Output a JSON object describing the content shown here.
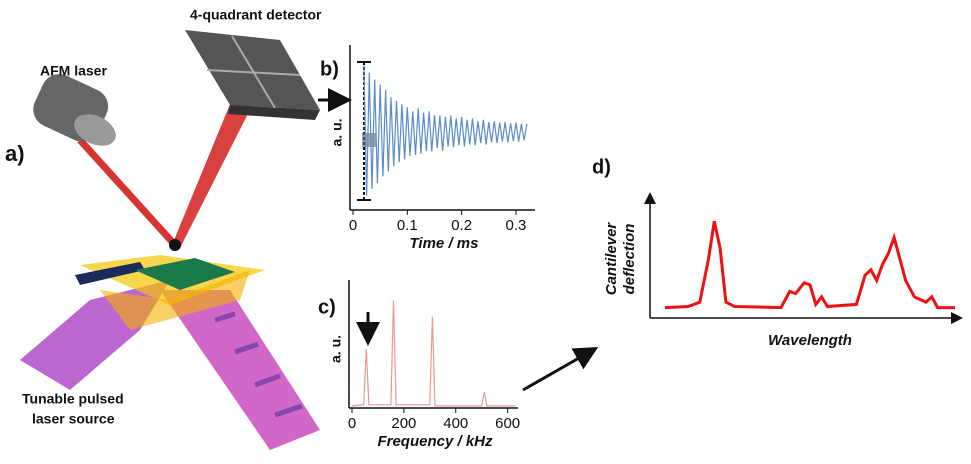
{
  "labels": {
    "a": "a)",
    "b": "b)",
    "c": "c)",
    "d": "d)",
    "detector": "4-quadrant detector",
    "laser": "AFM laser",
    "source": [
      "Tunable pulsed",
      "laser source"
    ]
  },
  "chart_data": [
    {
      "type": "line",
      "y_label": "a. u.",
      "x_label": "Time / ms",
      "color": "#5b8cc8",
      "xlim": [
        0,
        0.335
      ],
      "ylim": [
        -1.1,
        1.1
      ],
      "xticks": [
        0,
        0.1,
        0.2,
        0.3
      ],
      "x": [
        0.02,
        0.025,
        0.03,
        0.035,
        0.04,
        0.045,
        0.05,
        0.055,
        0.06,
        0.065,
        0.07,
        0.075,
        0.08,
        0.085,
        0.09,
        0.095,
        0.1,
        0.105,
        0.11,
        0.115,
        0.12,
        0.125,
        0.13,
        0.135,
        0.14,
        0.145,
        0.15,
        0.155,
        0.16,
        0.165,
        0.17,
        0.175,
        0.18,
        0.185,
        0.19,
        0.195,
        0.2,
        0.205,
        0.21,
        0.215,
        0.22,
        0.225,
        0.23,
        0.235,
        0.24,
        0.245,
        0.25,
        0.255,
        0.26,
        0.265,
        0.27,
        0.275,
        0.28,
        0.285,
        0.29,
        0.295,
        0.3,
        0.305,
        0.31,
        0.315,
        0.32
      ],
      "values": [
        0.95,
        -0.9,
        0.85,
        -0.8,
        0.75,
        -0.72,
        0.68,
        -0.62,
        0.6,
        -0.55,
        0.5,
        -0.48,
        0.45,
        -0.42,
        0.4,
        -0.38,
        0.36,
        -0.33,
        0.3,
        -0.32,
        0.34,
        -0.3,
        0.28,
        -0.26,
        0.3,
        -0.27,
        0.25,
        -0.22,
        0.24,
        -0.26,
        0.22,
        -0.2,
        0.24,
        -0.21,
        0.2,
        -0.18,
        0.22,
        -0.2,
        0.18,
        -0.17,
        0.2,
        -0.18,
        0.16,
        -0.15,
        0.18,
        -0.17,
        0.15,
        -0.14,
        0.16,
        -0.15,
        0.14,
        -0.13,
        0.15,
        -0.14,
        0.13,
        -0.12,
        0.14,
        -0.13,
        0.12,
        -0.11,
        0.12
      ]
    },
    {
      "type": "line",
      "y_label": "a. u.",
      "x_label": "Frequency / kHz",
      "color": "#e89a92",
      "xlim": [
        0,
        640
      ],
      "ylim": [
        0,
        1.1
      ],
      "xticks": [
        0,
        200,
        400,
        600
      ],
      "x": [
        0,
        45,
        55,
        65,
        150,
        160,
        170,
        300,
        310,
        320,
        500,
        510,
        520,
        630
      ],
      "values": [
        0.02,
        0.03,
        0.55,
        0.03,
        0.03,
        1.0,
        0.03,
        0.03,
        0.85,
        0.02,
        0.02,
        0.15,
        0.02,
        0.02
      ]
    },
    {
      "type": "line",
      "y_label": [
        "Cantilever",
        "deflection"
      ],
      "x_label": "Wavelength",
      "color": "#ee1111",
      "xlim": [
        0,
        100
      ],
      "ylim": [
        0,
        1
      ],
      "x": [
        0,
        8,
        12,
        15,
        17,
        19,
        21,
        24,
        40,
        43,
        45,
        48,
        50,
        52,
        54,
        56,
        66,
        69,
        71,
        73,
        75,
        77,
        79,
        81,
        83,
        86,
        90,
        92,
        94,
        100
      ],
      "values": [
        0.05,
        0.06,
        0.1,
        0.5,
        0.85,
        0.6,
        0.1,
        0.06,
        0.05,
        0.2,
        0.18,
        0.28,
        0.26,
        0.08,
        0.15,
        0.06,
        0.08,
        0.35,
        0.4,
        0.3,
        0.45,
        0.55,
        0.7,
        0.5,
        0.3,
        0.15,
        0.1,
        0.15,
        0.05,
        0.05
      ]
    }
  ]
}
